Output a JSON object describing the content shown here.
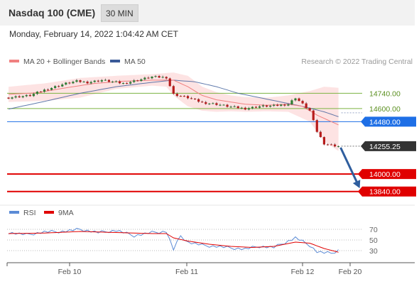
{
  "header": {
    "instrument": "Nasdaq 100 (CME)",
    "interval": "30 MIN"
  },
  "timestamp": "Monday, February 14, 2022 1:04:42 AM CET",
  "legend": {
    "ma20_label": "MA 20 + Bollinger Bands",
    "ma50_label": "MA 50",
    "credit": "Research © 2022 Trading Central"
  },
  "rsi_legend": {
    "rsi_label": "RSI",
    "ma_label": "9MA"
  },
  "colors": {
    "ma20": "#f08080",
    "ma50": "#3a5a98",
    "band": "#fde0e0",
    "up": "#2e7d32",
    "down": "#b71c1c",
    "support": "#e00000",
    "resistance": "#7cb342",
    "pivot": "#1e6fe6",
    "price": "#333333",
    "arrow": "#2f5e9e"
  },
  "chart_data": [
    {
      "type": "candlestick",
      "title": "Nasdaq 100 (CME) 30 MIN",
      "x_ticks": [
        "Feb 10",
        "Feb 11",
        "Feb 12",
        "Feb 20"
      ],
      "ylim": [
        13760,
        14970
      ],
      "levels": [
        {
          "value": 14740,
          "label": "14740.00",
          "kind": "resistance"
        },
        {
          "value": 14600,
          "label": "14600.00",
          "kind": "resistance"
        },
        {
          "value": 14480,
          "label": "14480.00",
          "kind": "pivot"
        },
        {
          "value": 14255.25,
          "label": "14255.25",
          "kind": "last-price"
        },
        {
          "value": 14000,
          "label": "14000.00",
          "kind": "support"
        },
        {
          "value": 13840,
          "label": "13840.00",
          "kind": "support"
        }
      ],
      "price_path": [
        [
          0,
          14700
        ],
        [
          6,
          14720
        ],
        [
          10,
          14770
        ],
        [
          14,
          14810
        ],
        [
          16,
          14830
        ],
        [
          19,
          14850
        ],
        [
          22,
          14840
        ],
        [
          26,
          14860
        ],
        [
          29,
          14845
        ],
        [
          32,
          14830
        ],
        [
          36,
          14860
        ],
        [
          40,
          14890
        ],
        [
          44,
          14885
        ],
        [
          46,
          14730
        ],
        [
          50,
          14700
        ],
        [
          54,
          14655
        ],
        [
          58,
          14640
        ],
        [
          62,
          14615
        ],
        [
          66,
          14600
        ],
        [
          70,
          14620
        ],
        [
          74,
          14625
        ],
        [
          78,
          14640
        ],
        [
          80,
          14700
        ],
        [
          84,
          14580
        ],
        [
          86,
          14390
        ],
        [
          88,
          14280
        ],
        [
          90,
          14265
        ],
        [
          92,
          14255
        ]
      ],
      "ma20_path": [
        [
          0,
          14730
        ],
        [
          8,
          14745
        ],
        [
          16,
          14790
        ],
        [
          24,
          14830
        ],
        [
          32,
          14850
        ],
        [
          40,
          14860
        ],
        [
          46,
          14860
        ],
        [
          50,
          14800
        ],
        [
          54,
          14720
        ],
        [
          58,
          14680
        ],
        [
          62,
          14660
        ],
        [
          66,
          14640
        ],
        [
          72,
          14630
        ],
        [
          78,
          14640
        ],
        [
          82,
          14620
        ],
        [
          86,
          14540
        ],
        [
          92,
          14450
        ]
      ],
      "bollinger_upper": [
        [
          0,
          14800
        ],
        [
          10,
          14830
        ],
        [
          20,
          14880
        ],
        [
          30,
          14900
        ],
        [
          40,
          14915
        ],
        [
          44,
          14925
        ],
        [
          46,
          14930
        ],
        [
          50,
          14900
        ],
        [
          54,
          14800
        ],
        [
          58,
          14750
        ],
        [
          62,
          14720
        ],
        [
          66,
          14705
        ],
        [
          72,
          14700
        ],
        [
          78,
          14720
        ],
        [
          84,
          14760
        ],
        [
          88,
          14800
        ],
        [
          92,
          14790
        ]
      ],
      "bollinger_lower": [
        [
          0,
          14660
        ],
        [
          10,
          14670
        ],
        [
          20,
          14700
        ],
        [
          30,
          14780
        ],
        [
          40,
          14810
        ],
        [
          44,
          14800
        ],
        [
          46,
          14720
        ],
        [
          50,
          14620
        ],
        [
          54,
          14580
        ],
        [
          58,
          14570
        ],
        [
          62,
          14575
        ],
        [
          66,
          14570
        ],
        [
          72,
          14575
        ],
        [
          78,
          14570
        ],
        [
          84,
          14480
        ],
        [
          88,
          14300
        ],
        [
          92,
          14210
        ]
      ],
      "ma50_path": [
        [
          0,
          14595
        ],
        [
          10,
          14665
        ],
        [
          20,
          14740
        ],
        [
          30,
          14800
        ],
        [
          40,
          14840
        ],
        [
          46,
          14860
        ],
        [
          52,
          14845
        ],
        [
          58,
          14800
        ],
        [
          64,
          14740
        ],
        [
          70,
          14700
        ],
        [
          76,
          14660
        ],
        [
          82,
          14620
        ],
        [
          88,
          14570
        ],
        [
          92,
          14525
        ]
      ],
      "forecast": {
        "from": 14255.25,
        "to": 13840
      }
    },
    {
      "type": "line",
      "title": "RSI",
      "y_ticks": [
        70,
        50,
        30
      ],
      "ylim": [
        10,
        90
      ],
      "rsi": [
        [
          0,
          64
        ],
        [
          5,
          60
        ],
        [
          10,
          65
        ],
        [
          15,
          66
        ],
        [
          20,
          70
        ],
        [
          25,
          64
        ],
        [
          30,
          68
        ],
        [
          35,
          58
        ],
        [
          40,
          64
        ],
        [
          44,
          66
        ],
        [
          46,
          32
        ],
        [
          48,
          58
        ],
        [
          50,
          46
        ],
        [
          54,
          40
        ],
        [
          58,
          38
        ],
        [
          62,
          35
        ],
        [
          66,
          33
        ],
        [
          70,
          38
        ],
        [
          74,
          36
        ],
        [
          78,
          48
        ],
        [
          80,
          54
        ],
        [
          84,
          40
        ],
        [
          86,
          28
        ],
        [
          88,
          26
        ],
        [
          90,
          25
        ],
        [
          92,
          31
        ]
      ],
      "rsi_ma": [
        [
          0,
          62
        ],
        [
          10,
          63
        ],
        [
          20,
          66
        ],
        [
          30,
          64
        ],
        [
          40,
          62
        ],
        [
          44,
          62
        ],
        [
          46,
          54
        ],
        [
          50,
          48
        ],
        [
          56,
          42
        ],
        [
          62,
          38
        ],
        [
          68,
          36
        ],
        [
          74,
          38
        ],
        [
          80,
          46
        ],
        [
          84,
          44
        ],
        [
          88,
          34
        ],
        [
          92,
          27
        ]
      ]
    }
  ]
}
